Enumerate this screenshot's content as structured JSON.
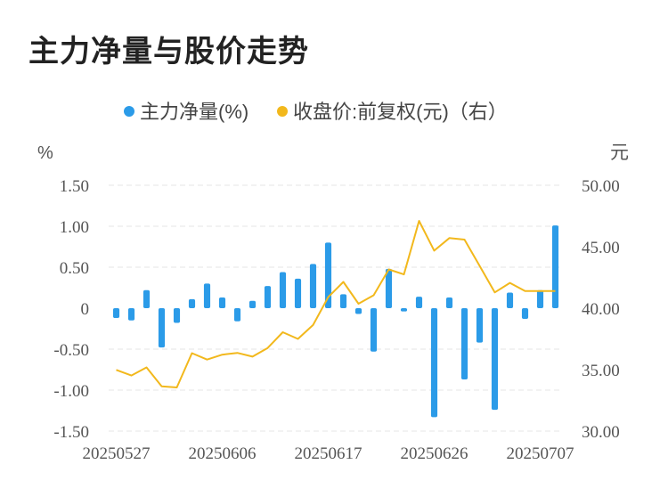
{
  "chart_data": {
    "type": "bar",
    "title": "主力净量与股价走势",
    "legend": [
      "主力净量(%)",
      "收盘价:前复权(元)（右）"
    ],
    "y_left_unit": "%",
    "y_right_unit": "元",
    "y_left_ticks": [
      "1.50",
      "1.00",
      "0.50",
      "0",
      "-0.50",
      "-1.00",
      "-1.50"
    ],
    "y_right_ticks": [
      "50.00",
      "45.00",
      "40.00",
      "35.00",
      "30.00"
    ],
    "x_tick_labels": [
      "20250527",
      "20250606",
      "20250617",
      "20250626",
      "20250707"
    ],
    "ylim_left": [
      -1.5,
      1.5
    ],
    "ylim_right": [
      30,
      50
    ],
    "series": [
      {
        "name": "主力净量(%)",
        "color": "#2b9be8",
        "values": [
          -0.12,
          -0.15,
          0.22,
          -0.48,
          -0.18,
          0.11,
          0.3,
          0.13,
          -0.16,
          0.09,
          0.27,
          0.44,
          0.36,
          0.54,
          0.8,
          0.17,
          -0.07,
          -0.53,
          0.48,
          -0.04,
          0.14,
          -1.33,
          0.13,
          -0.87,
          -0.42,
          -1.24,
          0.19,
          -0.13,
          0.22,
          1.01
        ]
      },
      {
        "name": "收盘价:前复权(元)（右）",
        "color": "#f2b81c",
        "values": [
          34.98,
          34.52,
          35.18,
          33.64,
          33.55,
          36.34,
          35.82,
          36.22,
          36.36,
          36.06,
          36.76,
          38.04,
          37.5,
          38.63,
          40.9,
          42.14,
          40.36,
          41.05,
          43.15,
          42.75,
          47.1,
          44.68,
          45.7,
          45.58,
          43.44,
          41.28,
          42.06,
          41.4,
          41.4,
          41.4
        ]
      }
    ]
  }
}
